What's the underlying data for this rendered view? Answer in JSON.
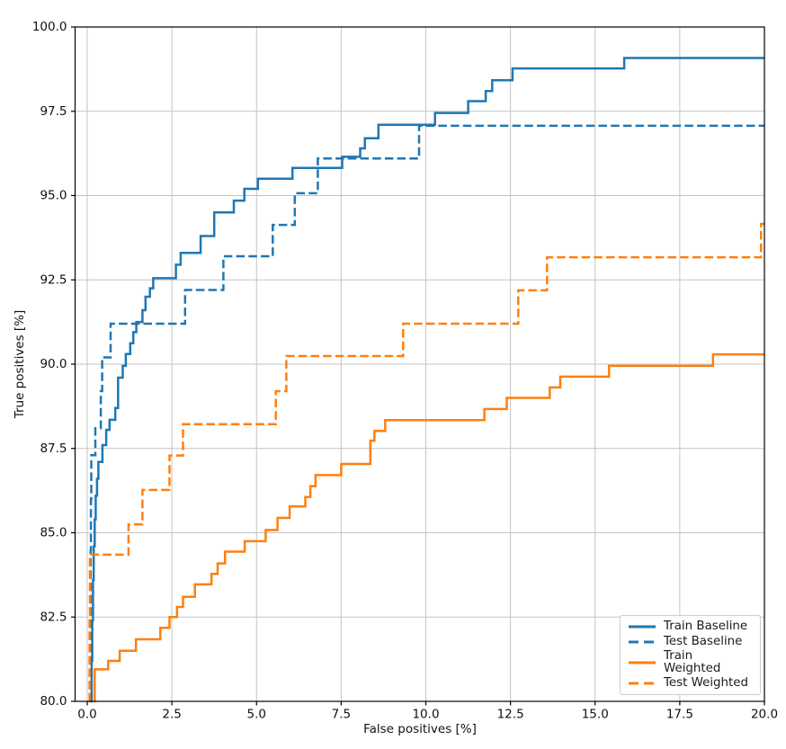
{
  "chart_data": {
    "type": "line",
    "step": "post",
    "title": "",
    "xlabel": "False positives [%]",
    "ylabel": "True positives [%]",
    "xlim": [
      0,
      20
    ],
    "ylim": [
      80,
      100
    ],
    "grid": true,
    "grid_color": "#c3c3c3",
    "spine_color": "#000000",
    "legend_position": "lower right",
    "x_ticks": [
      0,
      2.5,
      5,
      7.5,
      10,
      12.5,
      15,
      17.5,
      20
    ],
    "x_tick_labels": [
      "0.0",
      "2.5",
      "5.0",
      "7.5",
      "10.0",
      "12.5",
      "15.0",
      "17.5",
      "20.0"
    ],
    "y_ticks": [
      80,
      82.5,
      85,
      87.5,
      90,
      92.5,
      95,
      97.5,
      100
    ],
    "y_tick_labels": [
      "80.0",
      "82.5",
      "85.0",
      "87.5",
      "90.0",
      "92.5",
      "95.0",
      "97.5",
      "100.0"
    ],
    "series": [
      {
        "name": "Train Baseline",
        "color": "#1f77b4",
        "style": "solid",
        "points": [
          [
            0.12,
            80
          ],
          [
            0.13,
            81.2
          ],
          [
            0.15,
            82.4
          ],
          [
            0.17,
            83.6
          ],
          [
            0.19,
            84.6
          ],
          [
            0.22,
            85.4
          ],
          [
            0.25,
            86.1
          ],
          [
            0.29,
            86.6
          ],
          [
            0.33,
            87.1
          ],
          [
            0.45,
            87.6
          ],
          [
            0.56,
            88.05
          ],
          [
            0.66,
            88.35
          ],
          [
            0.83,
            88.7
          ],
          [
            0.91,
            89.6
          ],
          [
            1.05,
            89.95
          ],
          [
            1.14,
            90.3
          ],
          [
            1.27,
            90.62
          ],
          [
            1.36,
            90.95
          ],
          [
            1.45,
            91.25
          ],
          [
            1.63,
            91.6
          ],
          [
            1.72,
            92.0
          ],
          [
            1.85,
            92.25
          ],
          [
            1.95,
            92.55
          ],
          [
            2.62,
            92.95
          ],
          [
            2.76,
            93.3
          ],
          [
            3.35,
            93.8
          ],
          [
            3.75,
            94.5
          ],
          [
            4.33,
            94.85
          ],
          [
            4.64,
            95.2
          ],
          [
            5.04,
            95.5
          ],
          [
            6.06,
            95.82
          ],
          [
            7.53,
            96.15
          ],
          [
            8.06,
            96.4
          ],
          [
            8.2,
            96.7
          ],
          [
            8.6,
            97.1
          ],
          [
            10.27,
            97.45
          ],
          [
            11.25,
            97.8
          ],
          [
            11.77,
            98.1
          ],
          [
            11.96,
            98.42
          ],
          [
            12.56,
            98.77
          ],
          [
            15.86,
            99.08
          ],
          [
            20,
            99.08
          ]
        ]
      },
      {
        "name": "Test Baseline",
        "color": "#1f77b4",
        "style": "dashed",
        "points": [
          [
            0.08,
            80
          ],
          [
            0.09,
            82
          ],
          [
            0.1,
            84.5
          ],
          [
            0.11,
            86
          ],
          [
            0.12,
            87.3
          ],
          [
            0.24,
            88.1
          ],
          [
            0.4,
            89.2
          ],
          [
            0.44,
            90.2
          ],
          [
            0.69,
            91.2
          ],
          [
            2.89,
            92.2
          ],
          [
            4.02,
            93.2
          ],
          [
            5.48,
            94.13
          ],
          [
            6.13,
            95.07
          ],
          [
            6.81,
            96.1
          ],
          [
            9.8,
            97.07
          ],
          [
            20,
            97.07
          ]
        ]
      },
      {
        "name": "Train Weighted",
        "color": "#ff7f0e",
        "style": "solid",
        "points": [
          [
            0.2,
            80
          ],
          [
            0.22,
            80.95
          ],
          [
            0.62,
            81.2
          ],
          [
            0.96,
            81.5
          ],
          [
            1.44,
            81.84
          ],
          [
            2.16,
            82.18
          ],
          [
            2.43,
            82.5
          ],
          [
            2.65,
            82.8
          ],
          [
            2.83,
            83.1
          ],
          [
            3.18,
            83.47
          ],
          [
            3.67,
            83.78
          ],
          [
            3.85,
            84.09
          ],
          [
            4.07,
            84.44
          ],
          [
            4.65,
            84.75
          ],
          [
            5.27,
            85.08
          ],
          [
            5.62,
            85.44
          ],
          [
            5.98,
            85.78
          ],
          [
            6.44,
            86.06
          ],
          [
            6.59,
            86.38
          ],
          [
            6.74,
            86.71
          ],
          [
            7.5,
            87.04
          ],
          [
            8.36,
            87.73
          ],
          [
            8.48,
            88.02
          ],
          [
            8.8,
            88.34
          ],
          [
            11.73,
            88.67
          ],
          [
            12.39,
            89.0
          ],
          [
            13.66,
            89.31
          ],
          [
            13.97,
            89.63
          ],
          [
            15.41,
            89.95
          ],
          [
            18.48,
            90.29
          ],
          [
            20,
            90.29
          ]
        ]
      },
      {
        "name": "Test Weighted",
        "color": "#ff7f0e",
        "style": "dashed",
        "points": [
          [
            0.06,
            80
          ],
          [
            0.07,
            82.5
          ],
          [
            0.08,
            84.35
          ],
          [
            1.22,
            85.25
          ],
          [
            1.63,
            86.27
          ],
          [
            2.43,
            87.29
          ],
          [
            2.83,
            88.22
          ],
          [
            5.57,
            89.2
          ],
          [
            5.88,
            90.24
          ],
          [
            9.33,
            91.2
          ],
          [
            12.73,
            92.19
          ],
          [
            13.58,
            93.17
          ],
          [
            19.9,
            94.16
          ],
          [
            20,
            94.16
          ]
        ]
      }
    ]
  }
}
